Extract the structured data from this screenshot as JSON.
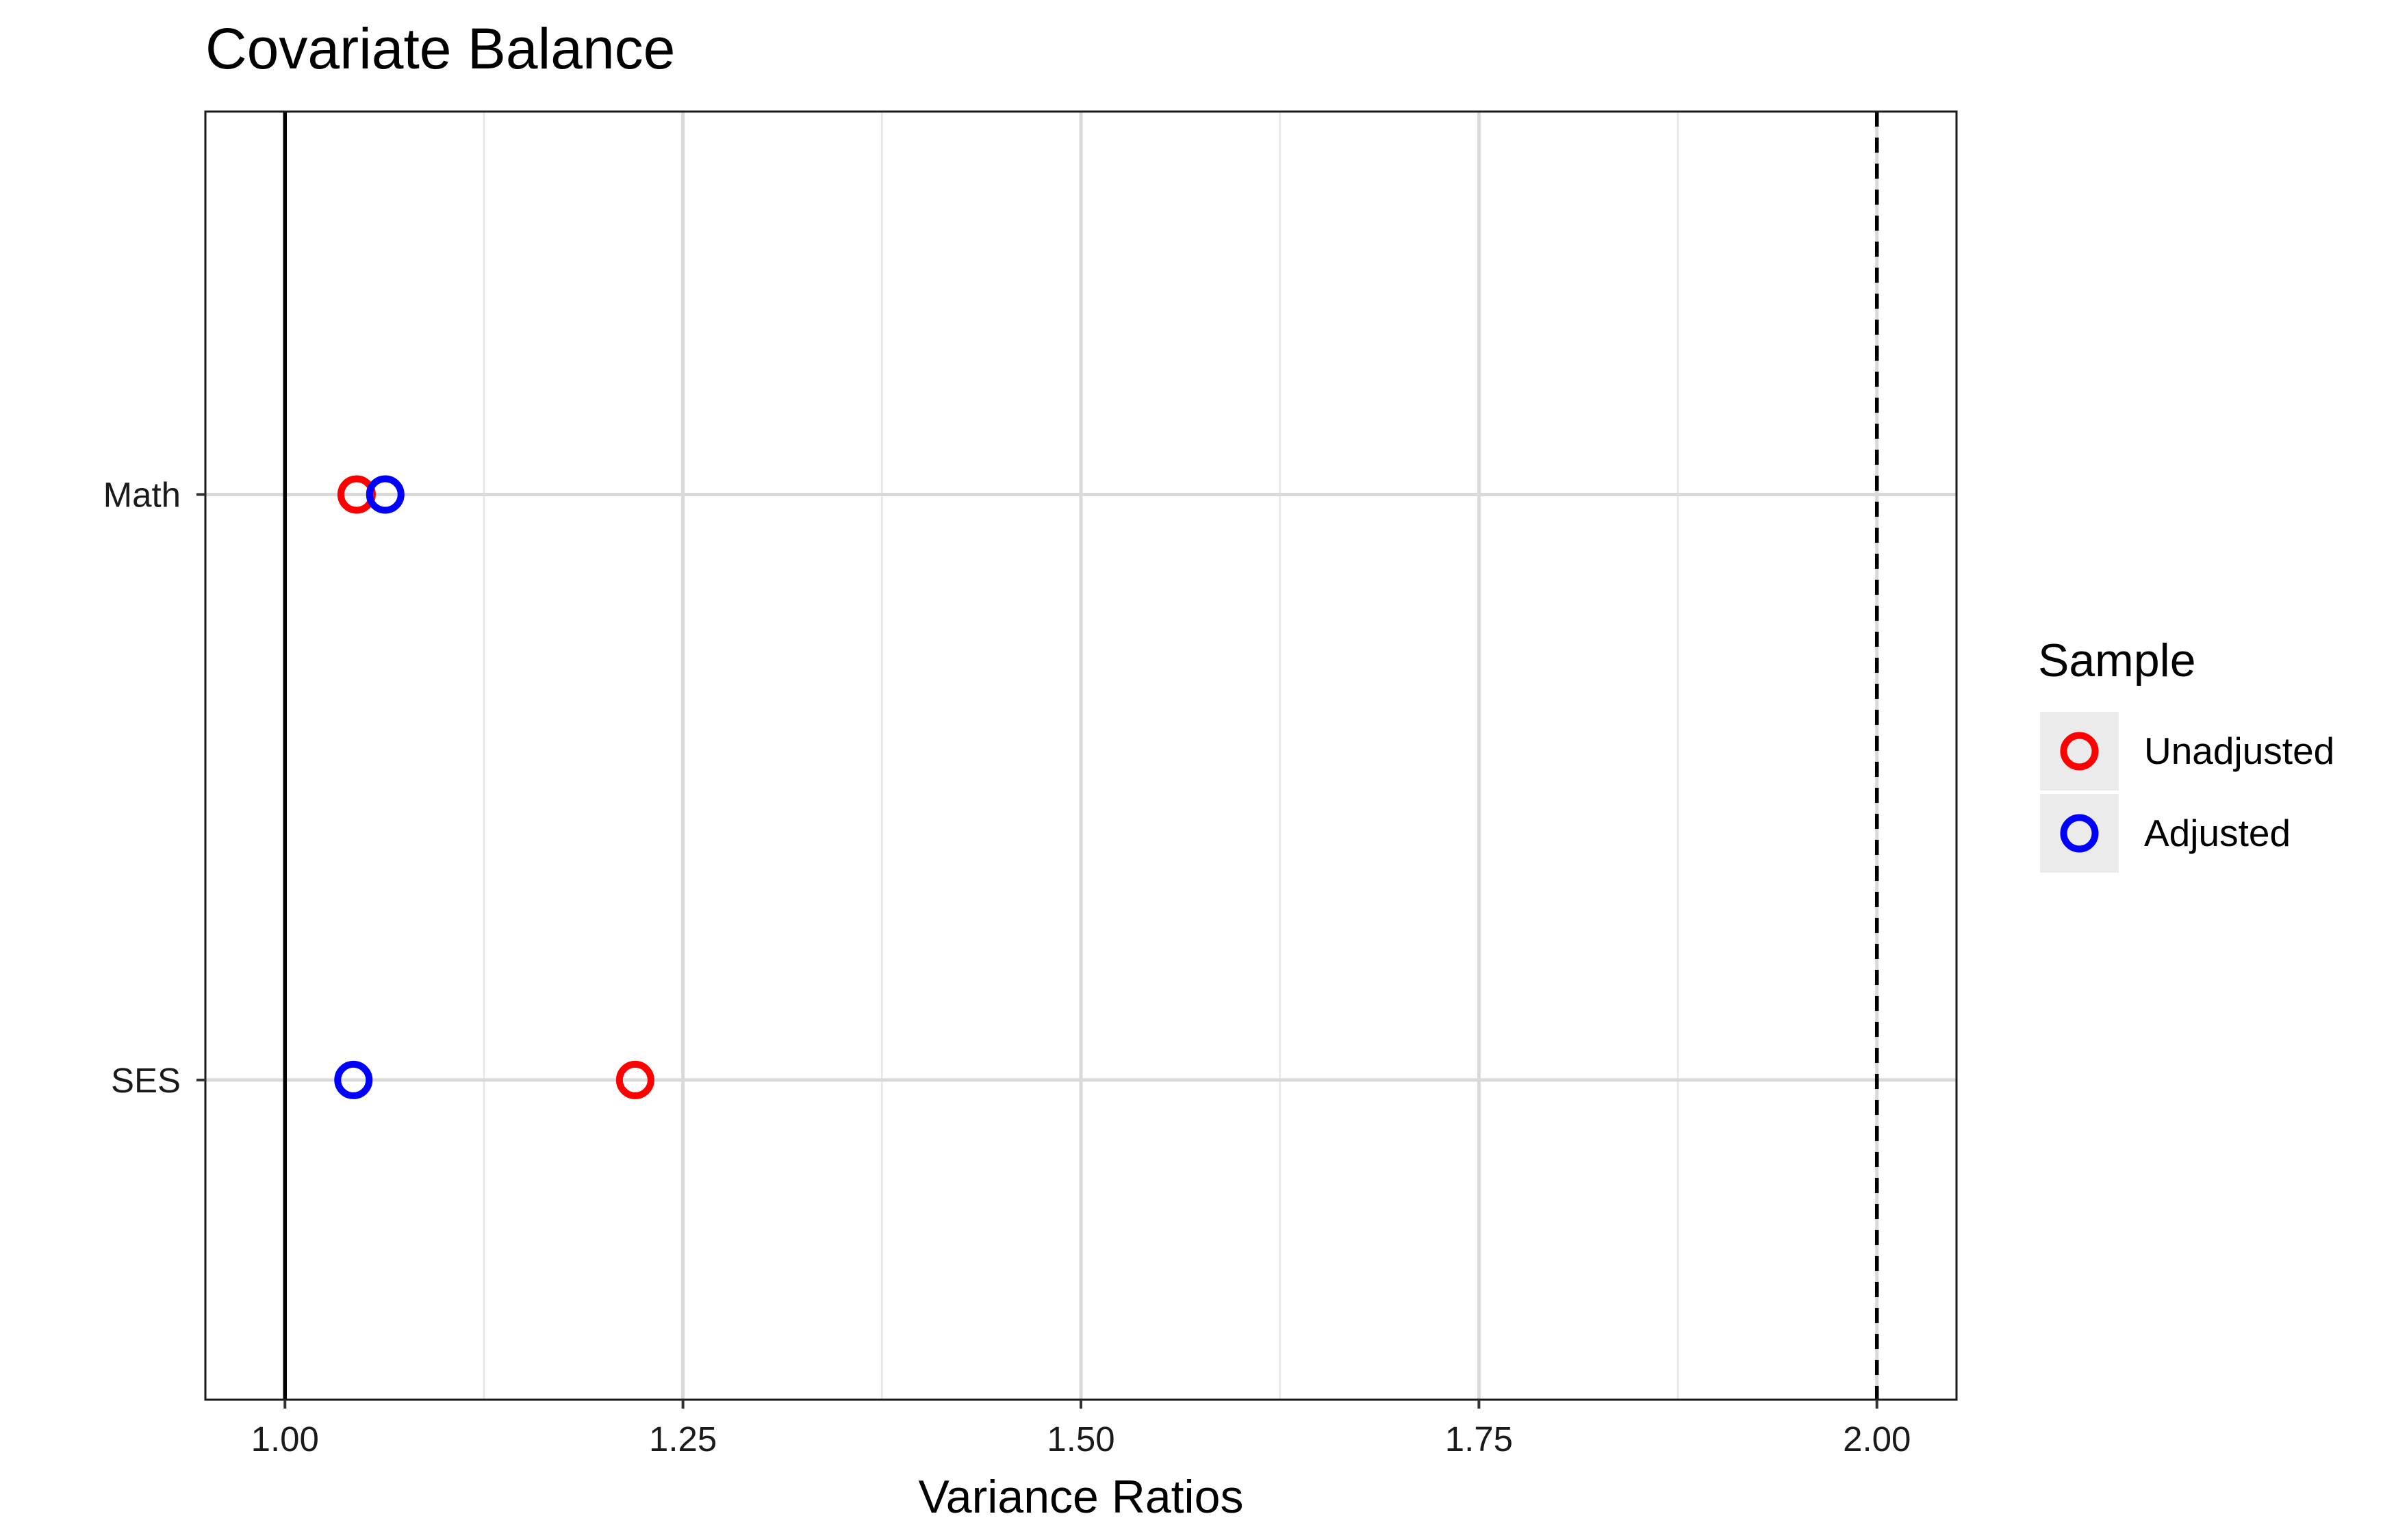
{
  "chart_data": {
    "type": "scatter",
    "title": "Covariate Balance",
    "xlabel": "Variance Ratios",
    "ylabel": "",
    "xlim": [
      0.95,
      2.05
    ],
    "x_ticks": [
      1.0,
      1.25,
      1.5,
      1.75,
      2.0
    ],
    "x_tick_labels": [
      "1.00",
      "1.25",
      "1.50",
      "1.75",
      "2.00"
    ],
    "x_minor_ticks": [
      1.125,
      1.375,
      1.625,
      1.875
    ],
    "categories": [
      "Math",
      "SES"
    ],
    "series": [
      {
        "name": "Unadjusted",
        "color": "#ff0000",
        "marker": "open-circle",
        "values": [
          1.045,
          1.22
        ]
      },
      {
        "name": "Adjusted",
        "color": "#0000ff",
        "marker": "open-circle",
        "values": [
          1.063,
          1.043
        ]
      }
    ],
    "reference_line": {
      "x": 1.0,
      "style": "solid"
    },
    "threshold_line": {
      "x": 2.0,
      "style": "dashed"
    },
    "grid": true,
    "legend": {
      "title": "Sample",
      "position": "right"
    }
  }
}
